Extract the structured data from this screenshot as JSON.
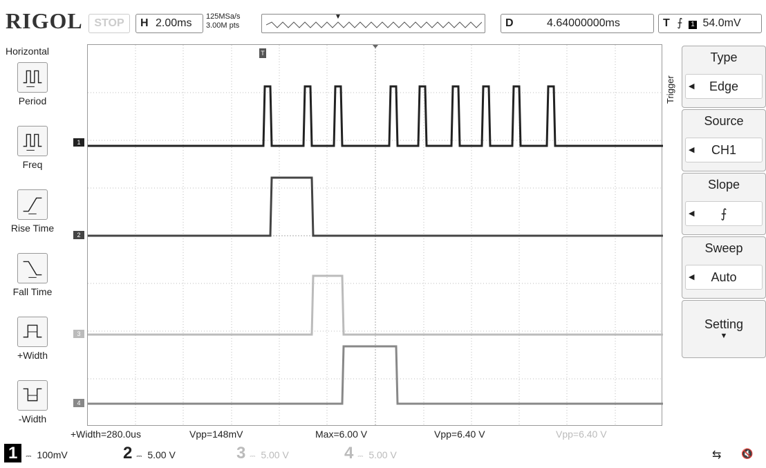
{
  "header": {
    "brand": "RIGOL",
    "run_state": "STOP",
    "horizontal_tag": "H",
    "timebase": "2.00ms",
    "sample_rate": "125MSa/s",
    "mem_depth": "3.00M pts",
    "delay_tag": "D",
    "delay": "4.64000000ms",
    "trigger_tag": "T",
    "trigger_level": "54.0mV"
  },
  "left_menu": {
    "title": "Horizontal",
    "items": [
      {
        "label": "Period",
        "icon": "period-icon"
      },
      {
        "label": "Freq",
        "icon": "freq-icon"
      },
      {
        "label": "Rise Time",
        "icon": "rise-time-icon"
      },
      {
        "label": "Fall Time",
        "icon": "fall-time-icon"
      },
      {
        "label": "+Width",
        "icon": "plus-width-icon"
      },
      {
        "label": "-Width",
        "icon": "minus-width-icon"
      }
    ]
  },
  "right_menu": {
    "section": "Trigger",
    "items": [
      {
        "title": "Type",
        "value": "Edge"
      },
      {
        "title": "Source",
        "value": "CH1"
      },
      {
        "title": "Slope",
        "value": "rising-edge-icon"
      },
      {
        "title": "Sweep",
        "value": "Auto"
      },
      {
        "title": "Setting",
        "value": ""
      }
    ]
  },
  "measurements": [
    {
      "text": "+Width=280.0us",
      "dim": false
    },
    {
      "text": "Vpp=148mV",
      "dim": false
    },
    {
      "text": "Max=6.00 V",
      "dim": false
    },
    {
      "text": "Vpp=6.40 V",
      "dim": false
    },
    {
      "text": "Vpp=6.40 V",
      "dim": true
    }
  ],
  "channels": [
    {
      "num": "1",
      "scale": "100mV",
      "active": true
    },
    {
      "num": "2",
      "scale": "5.00 V",
      "active": true
    },
    {
      "num": "3",
      "scale": "5.00 V",
      "active": false
    },
    {
      "num": "4",
      "scale": "5.00 V",
      "active": false
    }
  ],
  "colors": {
    "trace_ch1": "#222222",
    "trace_ch2": "#444444",
    "trace_ch3": "#bbbbbb",
    "trace_ch4": "#888888"
  }
}
